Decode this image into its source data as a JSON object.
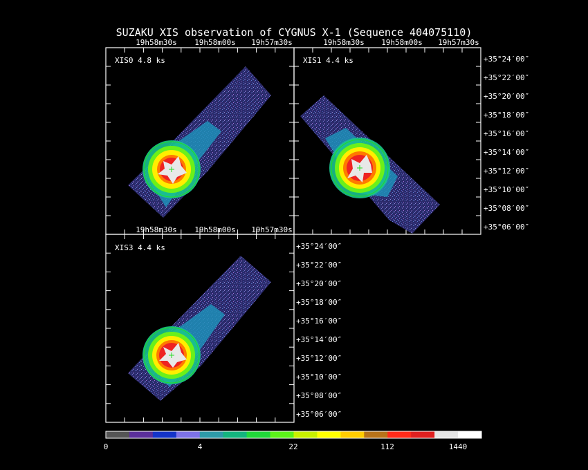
{
  "title": "SUZAKU XIS observation of CYGNUS X-1  (Sequence 404075110)",
  "panels": [
    {
      "id": "xis0",
      "label": "XIS0 4.8 ks",
      "ra_ticks": [
        "19h58m30s",
        "19h58m00s",
        "19h57m30s"
      ],
      "dec_ticks": []
    },
    {
      "id": "xis1",
      "label": "XIS1 4.4 ks",
      "ra_ticks": [
        "19h58m30s",
        "19h58m00s",
        "19h57m30s"
      ],
      "dec_ticks": [
        "+35°24′00″",
        "+35°22′00″",
        "+35°20′00″",
        "+35°18′00″",
        "+35°16′00″",
        "+35°14′00″",
        "+35°12′00″",
        "+35°10′00″",
        "+35°08′00″",
        "+35°06′00″"
      ]
    },
    {
      "id": "xis3",
      "label": "XIS3 4.4 ks",
      "ra_ticks": [
        "19h58m30s",
        "19h58m00s",
        "19h57m30s"
      ],
      "dec_ticks": [
        "+35°24′00″",
        "+35°22′00″",
        "+35°20′00″",
        "+35°18′00″",
        "+35°16′00″",
        "+35°14′00″",
        "+35°12′00″",
        "+35°10′00″",
        "+35°08′00″",
        "+35°06′00″"
      ]
    }
  ],
  "colorbar": {
    "colors": [
      "#555555",
      "#5b2f9a",
      "#1434c8",
      "#7d72e6",
      "#2e9aa8",
      "#14b47e",
      "#21d93a",
      "#5cf21a",
      "#c8f000",
      "#ffff00",
      "#ffcc00",
      "#b8731a",
      "#ff2a1a",
      "#e02020",
      "#e6e6e6",
      "#ffffff"
    ],
    "labels": [
      "0",
      "4",
      "22",
      "112",
      "1440"
    ]
  },
  "colors": {
    "background": "#000000",
    "frame": "#ffffff",
    "circle": "#22dd22",
    "cross": "#22dd22"
  }
}
